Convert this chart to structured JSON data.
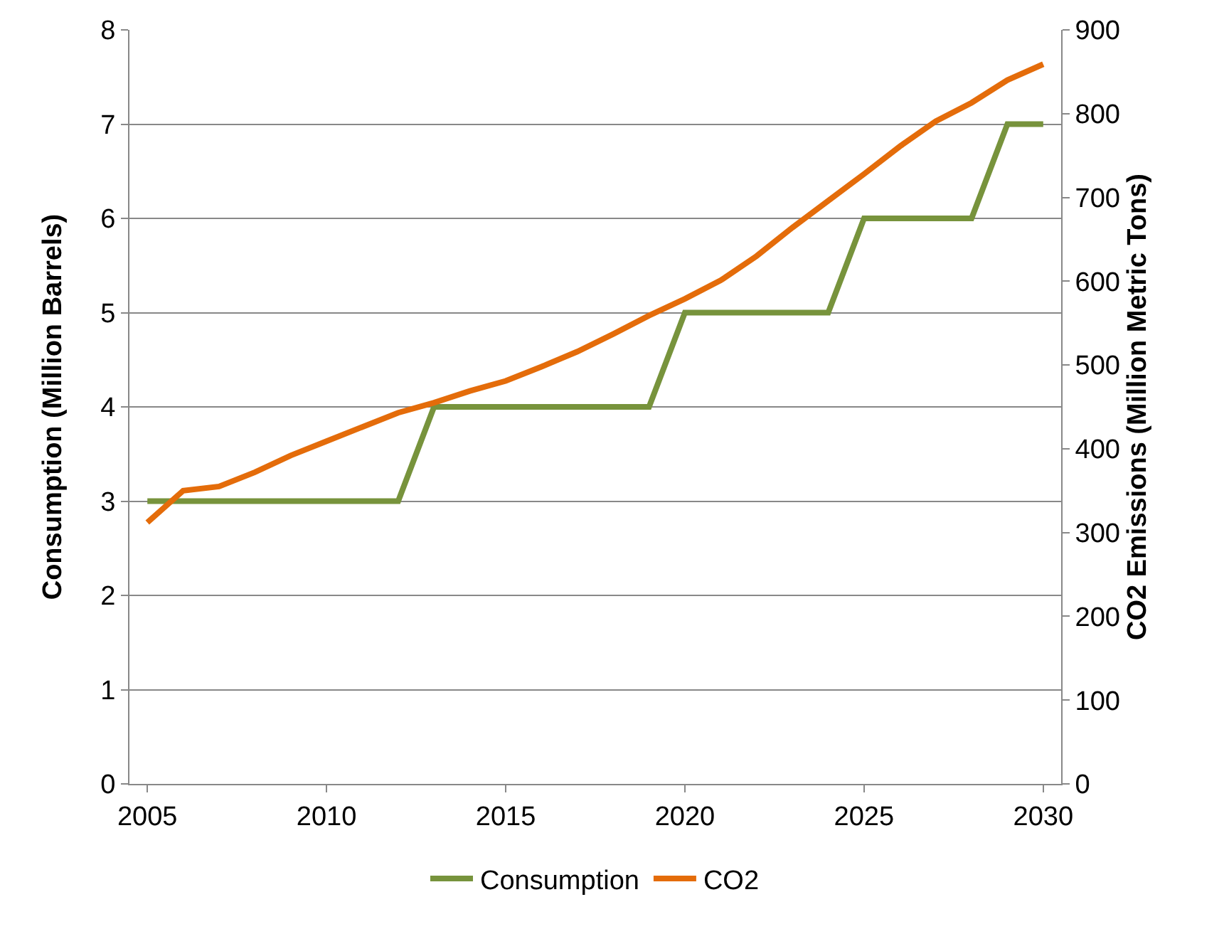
{
  "chart_data": {
    "type": "line",
    "ylabel": "Consumption (Million Barrels)",
    "y2label": "CO2 Emissions (Million Metric Tons)",
    "x": [
      2005,
      2006,
      2007,
      2008,
      2009,
      2010,
      2011,
      2012,
      2013,
      2014,
      2015,
      2016,
      2017,
      2018,
      2019,
      2020,
      2021,
      2022,
      2023,
      2024,
      2025,
      2026,
      2027,
      2028,
      2029,
      2030
    ],
    "series": [
      {
        "name": "Consumption",
        "color": "#77933c",
        "values": [
          3,
          3,
          3,
          3,
          3,
          3,
          3,
          3,
          4,
          4,
          4,
          4,
          4,
          4,
          4,
          5,
          5,
          5,
          5,
          5,
          6,
          6,
          6,
          6,
          7,
          7
        ]
      },
      {
        "name": "CO2",
        "color": "#e46c0a",
        "axis": "y2",
        "values": [
          312,
          350,
          355,
          372,
          392,
          409,
          426,
          443,
          455,
          469,
          481,
          498,
          516,
          537,
          559,
          579,
          601,
          630,
          664,
          696,
          728,
          761,
          791,
          813,
          840,
          859
        ]
      }
    ],
    "xlim": [
      2004.5,
      2030.5
    ],
    "xticks": [
      2005,
      2010,
      2015,
      2020,
      2025,
      2030
    ],
    "ylim": [
      0,
      8
    ],
    "yticks": [
      0,
      1,
      2,
      3,
      4,
      5,
      6,
      7,
      8
    ],
    "y2lim": [
      0,
      900
    ],
    "y2ticks": [
      0,
      100,
      200,
      300,
      400,
      500,
      600,
      700,
      800,
      900
    ],
    "grid": "y",
    "legend": "bottom",
    "marker": "none",
    "line_style": "solid"
  }
}
